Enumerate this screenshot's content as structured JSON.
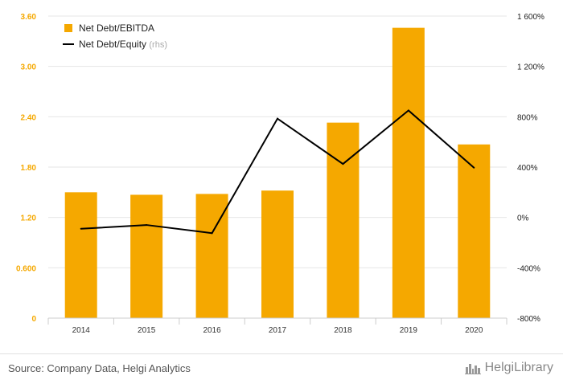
{
  "colors": {
    "bar": "#f5a800",
    "line": "#000000",
    "grid": "#e6e6e6"
  },
  "chart_data": {
    "type": "bar",
    "categories": [
      "2014",
      "2015",
      "2016",
      "2017",
      "2018",
      "2019",
      "2020"
    ],
    "series": [
      {
        "name": "Net Debt/EBITDA",
        "type": "bar",
        "axis": "left",
        "values": [
          1.5,
          1.47,
          1.48,
          1.52,
          2.33,
          3.46,
          2.07
        ]
      },
      {
        "name": "Net Debt/Equity",
        "type": "line",
        "axis": "right",
        "values": [
          -90,
          -60,
          -125,
          785,
          425,
          850,
          395
        ]
      }
    ],
    "ylim_left": [
      0,
      3.6
    ],
    "ylim_right": [
      -800,
      1600
    ],
    "yticks_left": [
      "0",
      "0.600",
      "1.20",
      "1.80",
      "2.40",
      "3.00",
      "3.60"
    ],
    "yticks_right": [
      "-800%",
      "-400%",
      "0%",
      "400%",
      "800%",
      "1 200%",
      "1 600%"
    ],
    "legend": {
      "position": "top-left",
      "items": [
        {
          "label": "Net Debt/EBITDA",
          "marker": "square"
        },
        {
          "label": "Net Debt/Equity",
          "suffix": "(rhs)",
          "marker": "line"
        }
      ]
    },
    "grid": true
  },
  "footer": {
    "source": "Source: Company Data, Helgi Analytics",
    "brand": "HelgiLibrary",
    "brand_icon": "city-skyline-icon"
  }
}
